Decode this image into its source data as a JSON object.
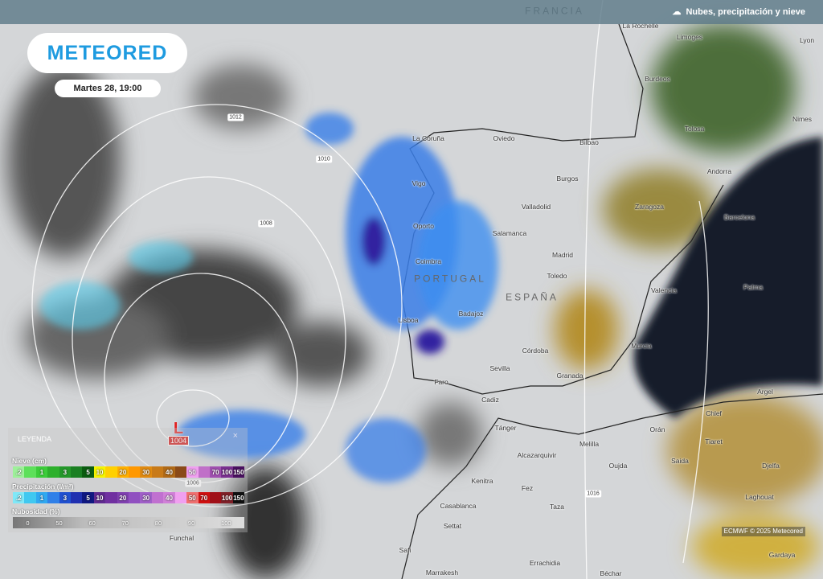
{
  "header": {
    "layer_title": "Nubes, precipitación y nieve",
    "layer_icon": "cloud-rain-snow-icon"
  },
  "logo": "METEORED",
  "date": "Martes 28, 19:00",
  "low": {
    "letter": "L",
    "pressure": "1004"
  },
  "isobars": [
    "1012",
    "1010",
    "1008",
    "1006",
    "1016"
  ],
  "cities": [
    "FRANCIA",
    "La Rochelle",
    "Limoges",
    "Burdeos",
    "Lyon",
    "Nimes",
    "Tolosa",
    "Andorra",
    "La Coruña",
    "Oviedo",
    "Bilbao",
    "Burgos",
    "Vigo",
    "Valladolid",
    "Zaragoza",
    "Barcelona",
    "Oporto",
    "Salamanca",
    "Madrid",
    "Coimbra",
    "PORTUGAL",
    "Toledo",
    "Valencia",
    "Palma",
    "ESPAÑA",
    "Badajoz",
    "Lisboa",
    "Córdoba",
    "Murcia",
    "Sevilla",
    "Granada",
    "Faro",
    "Cadiz",
    "Argel",
    "Tánger",
    "Orán",
    "Chlef",
    "Melilla",
    "Tiaret",
    "Alcazarquivir",
    "Oujda",
    "Saida",
    "Djelfa",
    "Kenitra",
    "Fez",
    "Taza",
    "Laghouat",
    "Casablanca",
    "Settat",
    "Safi",
    "Marrakesh",
    "Errachidia",
    "Béchar",
    "Gardaya",
    "Funchal"
  ],
  "legend": {
    "title": "LEYENDA",
    "close": "×",
    "snow": {
      "label": "Nieve (cm)",
      "steps": [
        ".2",
        "",
        "1",
        "",
        "3",
        "",
        "5",
        "10",
        "",
        "20",
        "",
        "30",
        "",
        "40",
        "",
        "50",
        "",
        "70",
        "100",
        "150"
      ],
      "colors": [
        "#9ef09a",
        "#5de05a",
        "#3ccc3a",
        "#2db02c",
        "#24982a",
        "#1a7f22",
        "#0b5c10",
        "#f5f500",
        "#ffd000",
        "#ffb000",
        "#ff9800",
        "#e08a10",
        "#c87a18",
        "#b06a18",
        "#8a4a18",
        "#f0a0f0",
        "#c070c8",
        "#a050b0",
        "#7a3090",
        "#4a1060"
      ]
    },
    "precip": {
      "label": "Precipitación (l/m²)",
      "steps": [
        ".2",
        "",
        "1",
        "",
        "3",
        "",
        "5",
        "10",
        "",
        "20",
        "",
        "30",
        "",
        "40",
        "",
        "50",
        "70",
        "",
        "100",
        "150"
      ],
      "colors": [
        "#80e8f8",
        "#40c8f0",
        "#30a8f0",
        "#3080e8",
        "#2050d0",
        "#2030b0",
        "#101880",
        "#602a90",
        "#7030a0",
        "#8040b0",
        "#9050c0",
        "#a060c8",
        "#c070d0",
        "#d080d8",
        "#f0a0f0",
        "#f07070",
        "#d01010",
        "#a01018",
        "#802028",
        "#101010"
      ]
    },
    "clouds": {
      "label": "Nubosidad (%)",
      "steps": [
        "0",
        "50",
        "60",
        "70",
        "80",
        "90",
        "100"
      ]
    }
  },
  "attribution": "ECMWF © 2025 Metecored",
  "colors": {
    "sea": "#141c2c",
    "rain": "#3a7ee8",
    "brand": "#1e9be0"
  }
}
